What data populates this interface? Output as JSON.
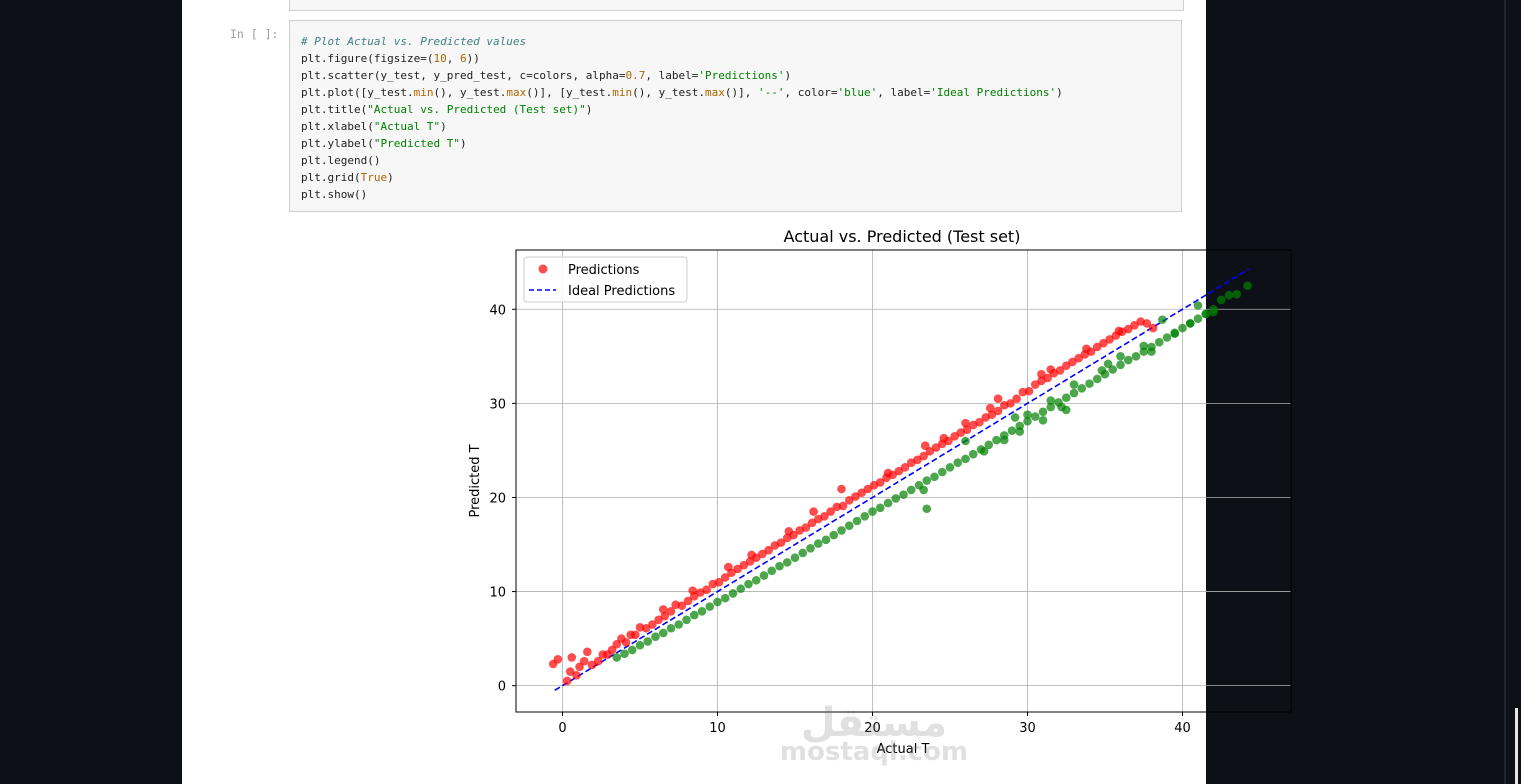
{
  "prompt": "In [ ]:",
  "code_lines": [
    [
      [
        "cm",
        "# Plot Actual vs. Predicted values"
      ]
    ],
    [
      [
        "",
        "plt.figure(figsize=("
      ],
      [
        "nu",
        "10"
      ],
      [
        "",
        ", "
      ],
      [
        "nu",
        "6"
      ],
      [
        "",
        "))"
      ]
    ],
    [
      [
        "",
        "plt.scatter(y_test, y_pred_test, c=colors, alpha="
      ],
      [
        "nu",
        "0.7"
      ],
      [
        "",
        ", label="
      ],
      [
        "st",
        "'Predictions'"
      ],
      [
        "",
        ")"
      ]
    ],
    [
      [
        "",
        "plt.plot([y_test."
      ],
      [
        "kw",
        "min"
      ],
      [
        "",
        "(), y_test."
      ],
      [
        "kw",
        "max"
      ],
      [
        "",
        "()], [y_test."
      ],
      [
        "kw",
        "min"
      ],
      [
        "",
        "(), y_test."
      ],
      [
        "kw",
        "max"
      ],
      [
        "",
        "()], "
      ],
      [
        "st",
        "'--'"
      ],
      [
        "",
        ", color="
      ],
      [
        "st",
        "'blue'"
      ],
      [
        "",
        ", label="
      ],
      [
        "st",
        "'Ideal Predictions'"
      ],
      [
        "",
        ")"
      ]
    ],
    [
      [
        "",
        "plt.title("
      ],
      [
        "st",
        "\"Actual vs. Predicted (Test set)\""
      ],
      [
        "",
        ")"
      ]
    ],
    [
      [
        "",
        "plt.xlabel("
      ],
      [
        "st",
        "\"Actual T\""
      ],
      [
        "",
        ")"
      ]
    ],
    [
      [
        "",
        "plt.ylabel("
      ],
      [
        "st",
        "\"Predicted T\""
      ],
      [
        "",
        ")"
      ]
    ],
    [
      [
        "",
        "plt.legend()"
      ]
    ],
    [
      [
        "",
        "plt.grid("
      ],
      [
        "kw",
        "True"
      ],
      [
        "",
        ")"
      ]
    ],
    [
      [
        "",
        "plt.show()"
      ]
    ]
  ],
  "watermark": {
    "arabic": "مستقل",
    "latin": "mostaql.com"
  },
  "colors": {
    "predictions": "#ff0000",
    "below_ideal": "#008000",
    "ideal_line": "#0000ff",
    "grid": "#b0b0b0"
  },
  "chart_data": {
    "type": "scatter",
    "title": "Actual vs. Predicted (Test set)",
    "xlabel": "Actual T",
    "ylabel": "Predicted T",
    "xlim": [
      -3,
      47
    ],
    "ylim": [
      -2.8,
      46.3
    ],
    "xticks": [
      0,
      10,
      20,
      30,
      40
    ],
    "yticks": [
      0,
      10,
      20,
      30,
      40
    ],
    "grid": true,
    "legend_position": "top-left",
    "legend": [
      {
        "label": "Predictions",
        "marker": "point",
        "color": "#ff0000"
      },
      {
        "label": "Ideal Predictions",
        "marker": "dashed-line",
        "color": "#0000ff"
      }
    ],
    "ideal_line": {
      "x": [
        -0.5,
        44.3
      ],
      "y": [
        -0.5,
        44.3
      ]
    },
    "alpha": 0.7,
    "series": [
      {
        "color": "#ff0000",
        "points": [
          [
            -0.6,
            2.3
          ],
          [
            -0.3,
            2.8
          ],
          [
            0.3,
            0.5
          ],
          [
            0.5,
            1.5
          ],
          [
            0.6,
            3.0
          ],
          [
            0.9,
            1.1
          ],
          [
            1.1,
            2.0
          ],
          [
            1.4,
            2.6
          ],
          [
            1.6,
            3.6
          ],
          [
            1.9,
            2.2
          ],
          [
            2.3,
            2.6
          ],
          [
            2.6,
            3.3
          ],
          [
            2.9,
            3.3
          ],
          [
            3.2,
            3.8
          ],
          [
            3.5,
            4.4
          ],
          [
            3.8,
            5.0
          ],
          [
            4.1,
            4.6
          ],
          [
            4.4,
            5.4
          ],
          [
            4.7,
            5.4
          ],
          [
            5.0,
            6.2
          ],
          [
            5.4,
            6.1
          ],
          [
            5.8,
            6.5
          ],
          [
            6.2,
            7.0
          ],
          [
            6.6,
            7.4
          ],
          [
            7.0,
            7.9
          ],
          [
            7.3,
            8.6
          ],
          [
            7.7,
            8.5
          ],
          [
            8.1,
            9.0
          ],
          [
            8.5,
            9.5
          ],
          [
            8.9,
            9.9
          ],
          [
            9.3,
            10.2
          ],
          [
            9.7,
            10.8
          ],
          [
            10.1,
            11.0
          ],
          [
            10.5,
            11.5
          ],
          [
            10.9,
            12.0
          ],
          [
            11.3,
            12.4
          ],
          [
            11.7,
            12.8
          ],
          [
            12.1,
            13.2
          ],
          [
            12.5,
            13.6
          ],
          [
            12.9,
            14.0
          ],
          [
            13.3,
            14.4
          ],
          [
            13.7,
            14.9
          ],
          [
            14.1,
            15.2
          ],
          [
            14.5,
            15.7
          ],
          [
            14.9,
            16.0
          ],
          [
            15.3,
            16.5
          ],
          [
            15.7,
            16.8
          ],
          [
            16.1,
            17.3
          ],
          [
            16.5,
            17.7
          ],
          [
            16.9,
            18.0
          ],
          [
            17.3,
            18.5
          ],
          [
            17.7,
            19.0
          ],
          [
            18.1,
            19.1
          ],
          [
            18.5,
            19.7
          ],
          [
            18.9,
            20.1
          ],
          [
            19.3,
            20.5
          ],
          [
            19.7,
            20.9
          ],
          [
            20.1,
            21.3
          ],
          [
            20.5,
            21.6
          ],
          [
            20.9,
            22.1
          ],
          [
            21.3,
            22.4
          ],
          [
            21.7,
            22.8
          ],
          [
            22.1,
            23.2
          ],
          [
            22.5,
            23.7
          ],
          [
            22.9,
            24.0
          ],
          [
            23.3,
            24.4
          ],
          [
            23.7,
            24.9
          ],
          [
            24.1,
            25.3
          ],
          [
            24.5,
            25.7
          ],
          [
            24.9,
            26.0
          ],
          [
            25.3,
            26.5
          ],
          [
            25.7,
            26.9
          ],
          [
            26.1,
            27.2
          ],
          [
            26.5,
            27.7
          ],
          [
            26.9,
            28.0
          ],
          [
            27.3,
            28.5
          ],
          [
            27.7,
            28.8
          ],
          [
            28.1,
            29.2
          ],
          [
            28.5,
            29.8
          ],
          [
            28.9,
            30.0
          ],
          [
            29.3,
            30.5
          ],
          [
            29.7,
            31.2
          ],
          [
            30.1,
            31.3
          ],
          [
            30.5,
            32.0
          ],
          [
            30.9,
            32.4
          ],
          [
            31.3,
            32.7
          ],
          [
            31.7,
            33.2
          ],
          [
            32.1,
            33.5
          ],
          [
            32.5,
            34.0
          ],
          [
            32.9,
            34.4
          ],
          [
            33.3,
            34.8
          ],
          [
            33.7,
            35.2
          ],
          [
            34.1,
            35.5
          ],
          [
            34.5,
            36.0
          ],
          [
            34.9,
            36.4
          ],
          [
            35.3,
            36.8
          ],
          [
            35.7,
            37.2
          ],
          [
            36.1,
            37.6
          ],
          [
            36.5,
            37.9
          ],
          [
            36.9,
            38.3
          ],
          [
            37.3,
            38.7
          ],
          [
            37.7,
            38.5
          ],
          [
            38.1,
            38.0
          ],
          [
            18.0,
            20.9
          ],
          [
            21.0,
            22.6
          ],
          [
            23.4,
            25.5
          ],
          [
            26.0,
            27.9
          ],
          [
            28.1,
            30.5
          ],
          [
            31.5,
            33.6
          ],
          [
            14.6,
            16.4
          ],
          [
            12.2,
            13.9
          ],
          [
            16.2,
            18.5
          ],
          [
            30.9,
            33.1
          ],
          [
            35.9,
            37.7
          ],
          [
            8.4,
            10.1
          ],
          [
            10.7,
            12.6
          ],
          [
            6.5,
            8.1
          ],
          [
            24.6,
            26.3
          ],
          [
            27.6,
            29.5
          ],
          [
            33.8,
            35.8
          ]
        ]
      },
      {
        "color": "#008000",
        "points": [
          [
            3.5,
            3.0
          ],
          [
            4.0,
            3.4
          ],
          [
            4.5,
            3.8
          ],
          [
            5.0,
            4.3
          ],
          [
            5.5,
            4.7
          ],
          [
            6.0,
            5.2
          ],
          [
            6.5,
            5.6
          ],
          [
            7.0,
            6.1
          ],
          [
            7.5,
            6.5
          ],
          [
            8.0,
            7.0
          ],
          [
            8.5,
            7.5
          ],
          [
            9.0,
            7.9
          ],
          [
            9.5,
            8.4
          ],
          [
            10.0,
            8.9
          ],
          [
            10.5,
            9.3
          ],
          [
            11.0,
            9.8
          ],
          [
            11.5,
            10.3
          ],
          [
            12.0,
            10.8
          ],
          [
            12.5,
            11.2
          ],
          [
            13.0,
            11.7
          ],
          [
            13.5,
            12.2
          ],
          [
            14.0,
            12.7
          ],
          [
            14.5,
            13.1
          ],
          [
            15.0,
            13.6
          ],
          [
            15.5,
            14.1
          ],
          [
            16.0,
            14.6
          ],
          [
            16.5,
            15.1
          ],
          [
            17.0,
            15.5
          ],
          [
            17.5,
            16.0
          ],
          [
            18.0,
            16.5
          ],
          [
            18.5,
            17.0
          ],
          [
            19.0,
            17.5
          ],
          [
            19.5,
            18.0
          ],
          [
            20.0,
            18.5
          ],
          [
            20.5,
            18.9
          ],
          [
            21.0,
            19.4
          ],
          [
            21.5,
            19.9
          ],
          [
            22.0,
            20.3
          ],
          [
            22.5,
            20.8
          ],
          [
            23.0,
            21.3
          ],
          [
            23.5,
            21.8
          ],
          [
            24.0,
            22.2
          ],
          [
            24.5,
            22.7
          ],
          [
            25.0,
            23.2
          ],
          [
            25.5,
            23.7
          ],
          [
            26.0,
            24.1
          ],
          [
            26.5,
            24.6
          ],
          [
            27.0,
            25.1
          ],
          [
            27.5,
            25.6
          ],
          [
            28.0,
            26.1
          ],
          [
            28.5,
            26.6
          ],
          [
            29.0,
            27.1
          ],
          [
            29.5,
            27.6
          ],
          [
            30.0,
            28.1
          ],
          [
            30.5,
            28.6
          ],
          [
            31.0,
            29.1
          ],
          [
            31.5,
            29.6
          ],
          [
            32.0,
            30.1
          ],
          [
            32.5,
            30.6
          ],
          [
            33.0,
            31.1
          ],
          [
            33.5,
            31.6
          ],
          [
            34.0,
            32.1
          ],
          [
            34.5,
            32.6
          ],
          [
            35.0,
            33.1
          ],
          [
            35.5,
            33.6
          ],
          [
            36.0,
            34.1
          ],
          [
            36.5,
            34.6
          ],
          [
            37.0,
            35.0
          ],
          [
            37.5,
            35.5
          ],
          [
            38.0,
            36.0
          ],
          [
            38.5,
            36.5
          ],
          [
            39.0,
            37.0
          ],
          [
            39.5,
            37.5
          ],
          [
            40.0,
            38.0
          ],
          [
            40.5,
            38.5
          ],
          [
            41.0,
            39.0
          ],
          [
            41.5,
            39.5
          ],
          [
            42.0,
            40.0
          ],
          [
            42.5,
            41.0
          ],
          [
            43.0,
            41.5
          ],
          [
            43.5,
            41.6
          ],
          [
            44.2,
            42.5
          ],
          [
            23.5,
            18.8
          ],
          [
            23.3,
            20.8
          ],
          [
            27.2,
            24.9
          ],
          [
            28.5,
            26.1
          ],
          [
            29.5,
            27.0
          ],
          [
            31.0,
            28.2
          ],
          [
            32.2,
            29.6
          ],
          [
            32.5,
            29.3
          ],
          [
            34.8,
            33.5
          ],
          [
            35.2,
            34.2
          ],
          [
            37.5,
            36.1
          ],
          [
            38.0,
            35.5
          ],
          [
            39.5,
            37.4
          ],
          [
            40.5,
            38.5
          ],
          [
            41.5,
            39.5
          ],
          [
            42.0,
            39.7
          ],
          [
            26.0,
            26.0
          ],
          [
            30.0,
            28.8
          ],
          [
            36.0,
            35.0
          ],
          [
            33.0,
            32.0
          ],
          [
            38.7,
            38.9
          ],
          [
            31.5,
            30.3
          ],
          [
            29.2,
            28.5
          ],
          [
            41.0,
            40.4
          ]
        ]
      }
    ]
  }
}
